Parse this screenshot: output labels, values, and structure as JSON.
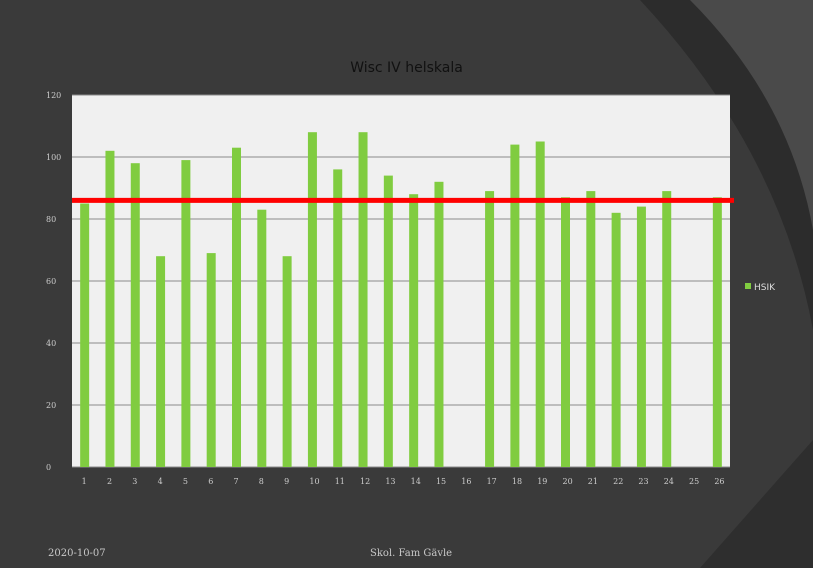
{
  "slide": {
    "title": "Wisc IV helskala",
    "footer_date": "2020-10-07",
    "footer_center": "Skol. Fam Gävle"
  },
  "colors": {
    "background": "#3a3a3a",
    "plot_area": "#f0f0f0",
    "bar": "#80cc40",
    "reference_line": "#ff0000",
    "gridline": "#8a8a8a"
  },
  "chart_data": {
    "type": "bar",
    "title": "Wisc IV helskala",
    "xlabel": "",
    "ylabel": "",
    "ylim": [
      0,
      120
    ],
    "yticks": [
      0,
      20,
      40,
      60,
      80,
      100,
      120
    ],
    "grid": true,
    "legend_placement": "right",
    "categories": [
      "1",
      "2",
      "3",
      "4",
      "5",
      "6",
      "7",
      "8",
      "9",
      "10",
      "11",
      "12",
      "13",
      "14",
      "15",
      "16",
      "17",
      "18",
      "19",
      "20",
      "21",
      "22",
      "23",
      "24",
      "25",
      "26"
    ],
    "series": [
      {
        "name": "HSIK",
        "values": [
          85,
          102,
          98,
          68,
          99,
          69,
          103,
          83,
          68,
          108,
          96,
          108,
          94,
          88,
          92,
          null,
          89,
          104,
          105,
          87,
          89,
          82,
          84,
          89,
          null,
          87
        ]
      }
    ],
    "reference_line": {
      "value": 86
    }
  }
}
